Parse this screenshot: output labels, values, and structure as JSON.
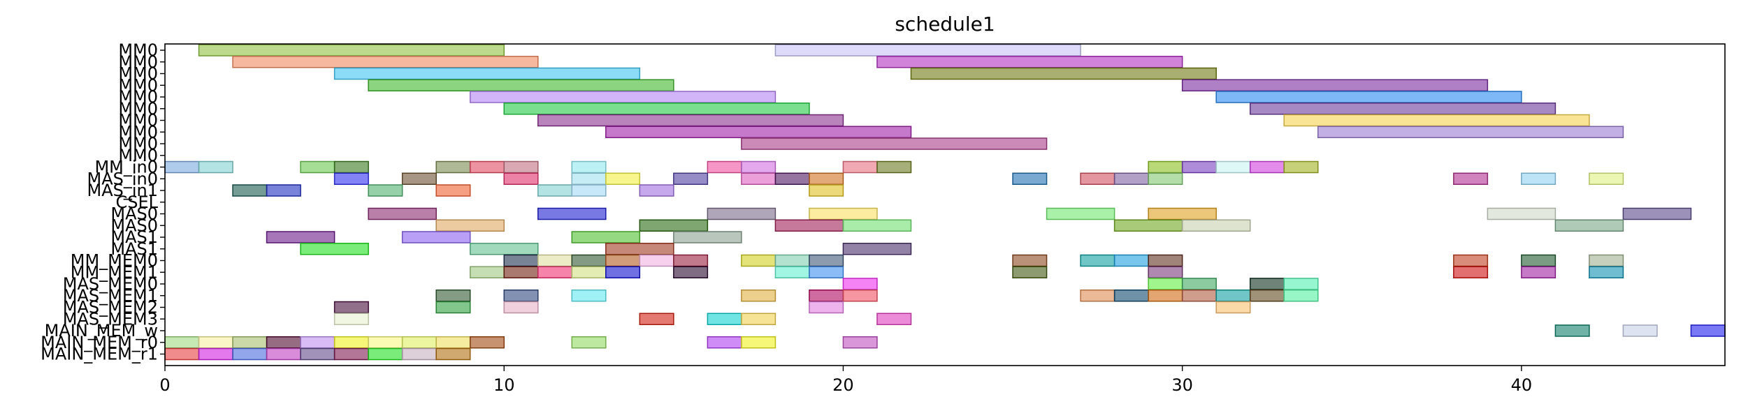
{
  "chart_data": {
    "type": "gantt",
    "title": "schedule1",
    "xlabel": "",
    "ylabel": "",
    "xlim": [
      0,
      46
    ],
    "x_ticks": [
      0,
      10,
      20,
      30,
      40
    ],
    "grid": false,
    "rows": [
      "MM0",
      "MM0",
      "MM0",
      "MM0",
      "MM0",
      "MM0",
      "MM0",
      "MM0",
      "MM0",
      "MM0",
      "MM_in0",
      "MAS_in0",
      "MAS_in1",
      "CSEL",
      "MAS0",
      "MAS0",
      "MAS1",
      "MAS1",
      "MM_MEM0",
      "MM_MEM1",
      "MAS_MEM0",
      "MAS_MEM1",
      "MAS_MEM2",
      "MAS_MEM3",
      "MAIN_MEM_w",
      "MAIN_MEM_r0",
      "MAIN_MEM_r1"
    ],
    "tasks": [
      {
        "row": 0,
        "start": 1,
        "end": 10,
        "color": "#8fbf3f"
      },
      {
        "row": 0,
        "start": 18,
        "end": 27,
        "color": "#c7c3f5"
      },
      {
        "row": 1,
        "start": 2,
        "end": 11,
        "color": "#f08a60"
      },
      {
        "row": 1,
        "start": 21,
        "end": 30,
        "color": "#b030c0"
      },
      {
        "row": 2,
        "start": 5,
        "end": 14,
        "color": "#40c4f4"
      },
      {
        "row": 2,
        "start": 22,
        "end": 31,
        "color": "#6f7a10"
      },
      {
        "row": 3,
        "start": 6,
        "end": 15,
        "color": "#3fb82a"
      },
      {
        "row": 3,
        "start": 30,
        "end": 39,
        "color": "#7a2ba0"
      },
      {
        "row": 4,
        "start": 9,
        "end": 18,
        "color": "#b482f5"
      },
      {
        "row": 4,
        "start": 31,
        "end": 40,
        "color": "#2a88f0"
      },
      {
        "row": 5,
        "start": 10,
        "end": 19,
        "color": "#22cc44"
      },
      {
        "row": 5,
        "start": 32,
        "end": 41,
        "color": "#6a3a9a"
      },
      {
        "row": 6,
        "start": 11,
        "end": 20,
        "color": "#8a3090"
      },
      {
        "row": 6,
        "start": 33,
        "end": 42,
        "color": "#f5d250"
      },
      {
        "row": 7,
        "start": 13,
        "end": 22,
        "color": "#a020a8"
      },
      {
        "row": 7,
        "start": 34,
        "end": 43,
        "color": "#9a7ad0"
      },
      {
        "row": 8,
        "start": 17,
        "end": 26,
        "color": "#a83c88"
      },
      {
        "row": 10,
        "start": 0,
        "end": 1,
        "color": "#7aa8e0"
      },
      {
        "row": 10,
        "start": 1,
        "end": 2,
        "color": "#80d0d0"
      },
      {
        "row": 10,
        "start": 4,
        "end": 5,
        "color": "#6ac850"
      },
      {
        "row": 10,
        "start": 5,
        "end": 6,
        "color": "#3a7a20"
      },
      {
        "row": 10,
        "start": 8,
        "end": 9,
        "color": "#7a8a50"
      },
      {
        "row": 10,
        "start": 9,
        "end": 10,
        "color": "#e04a60"
      },
      {
        "row": 10,
        "start": 10,
        "end": 11,
        "color": "#c07080"
      },
      {
        "row": 10,
        "start": 12,
        "end": 13,
        "color": "#90e8f0"
      },
      {
        "row": 10,
        "start": 16,
        "end": 17,
        "color": "#f050a0"
      },
      {
        "row": 10,
        "start": 17,
        "end": 18,
        "color": "#d070e0"
      },
      {
        "row": 10,
        "start": 20,
        "end": 21,
        "color": "#e87080"
      },
      {
        "row": 10,
        "start": 21,
        "end": 22,
        "color": "#6a7a20"
      },
      {
        "row": 10,
        "start": 29,
        "end": 30,
        "color": "#8ac020"
      },
      {
        "row": 10,
        "start": 30,
        "end": 31,
        "color": "#7a40c0"
      },
      {
        "row": 10,
        "start": 31,
        "end": 32,
        "color": "#c8f4f4"
      },
      {
        "row": 10,
        "start": 32,
        "end": 33,
        "color": "#d040e0"
      },
      {
        "row": 10,
        "start": 33,
        "end": 34,
        "color": "#a0b020"
      },
      {
        "row": 11,
        "start": 5,
        "end": 6,
        "color": "#3030f0"
      },
      {
        "row": 11,
        "start": 7,
        "end": 8,
        "color": "#6a5030"
      },
      {
        "row": 11,
        "start": 10,
        "end": 11,
        "color": "#e0306a"
      },
      {
        "row": 11,
        "start": 12,
        "end": 13,
        "color": "#a0e0f0"
      },
      {
        "row": 11,
        "start": 13,
        "end": 14,
        "color": "#f0f040"
      },
      {
        "row": 11,
        "start": 15,
        "end": 16,
        "color": "#5040a0"
      },
      {
        "row": 11,
        "start": 17,
        "end": 18,
        "color": "#e060c0"
      },
      {
        "row": 11,
        "start": 18,
        "end": 19,
        "color": "#501860"
      },
      {
        "row": 11,
        "start": 19,
        "end": 20,
        "color": "#d07020"
      },
      {
        "row": 11,
        "start": 25,
        "end": 26,
        "color": "#2070b0"
      },
      {
        "row": 11,
        "start": 27,
        "end": 28,
        "color": "#d05060"
      },
      {
        "row": 11,
        "start": 28,
        "end": 29,
        "color": "#8060a0"
      },
      {
        "row": 11,
        "start": 29,
        "end": 30,
        "color": "#80c870"
      },
      {
        "row": 11,
        "start": 38,
        "end": 39,
        "color": "#b03090"
      },
      {
        "row": 11,
        "start": 40,
        "end": 41,
        "color": "#90d0f0"
      },
      {
        "row": 11,
        "start": 42,
        "end": 43,
        "color": "#e0f080"
      },
      {
        "row": 12,
        "start": 2,
        "end": 3,
        "color": "#1a5a50"
      },
      {
        "row": 12,
        "start": 3,
        "end": 4,
        "color": "#2030c0"
      },
      {
        "row": 12,
        "start": 6,
        "end": 7,
        "color": "#50b070"
      },
      {
        "row": 12,
        "start": 8,
        "end": 9,
        "color": "#f06030"
      },
      {
        "row": 12,
        "start": 11,
        "end": 12,
        "color": "#80d0d0"
      },
      {
        "row": 12,
        "start": 12,
        "end": 13,
        "color": "#a0d8f4"
      },
      {
        "row": 12,
        "start": 14,
        "end": 15,
        "color": "#a070e0"
      },
      {
        "row": 12,
        "start": 19,
        "end": 20,
        "color": "#e0c020"
      },
      {
        "row": 14,
        "start": 6,
        "end": 8,
        "color": "#8a2a70"
      },
      {
        "row": 14,
        "start": 11,
        "end": 13,
        "color": "#2020d0"
      },
      {
        "row": 14,
        "start": 16,
        "end": 18,
        "color": "#7a6a8a"
      },
      {
        "row": 14,
        "start": 19,
        "end": 21,
        "color": "#f8e060"
      },
      {
        "row": 14,
        "start": 26,
        "end": 28,
        "color": "#70e870"
      },
      {
        "row": 14,
        "start": 29,
        "end": 31,
        "color": "#e0a020"
      },
      {
        "row": 14,
        "start": 39,
        "end": 41,
        "color": "#d0d8c8"
      },
      {
        "row": 14,
        "start": 43,
        "end": 45,
        "color": "#5a4a8a"
      },
      {
        "row": 15,
        "start": 8,
        "end": 10,
        "color": "#e0a860"
      },
      {
        "row": 15,
        "start": 14,
        "end": 16,
        "color": "#2a6a10"
      },
      {
        "row": 15,
        "start": 18,
        "end": 20,
        "color": "#a02058"
      },
      {
        "row": 15,
        "start": 20,
        "end": 22,
        "color": "#70e070"
      },
      {
        "row": 15,
        "start": 28,
        "end": 30,
        "color": "#70a820"
      },
      {
        "row": 15,
        "start": 30,
        "end": 32,
        "color": "#c8d0b0"
      },
      {
        "row": 15,
        "start": 41,
        "end": 43,
        "color": "#7aa888"
      },
      {
        "row": 16,
        "start": 3,
        "end": 5,
        "color": "#6a1a8a"
      },
      {
        "row": 16,
        "start": 7,
        "end": 9,
        "color": "#8a60f0"
      },
      {
        "row": 16,
        "start": 12,
        "end": 14,
        "color": "#50c030"
      },
      {
        "row": 16,
        "start": 15,
        "end": 17,
        "color": "#8aa090"
      },
      {
        "row": 17,
        "start": 4,
        "end": 6,
        "color": "#20e020"
      },
      {
        "row": 17,
        "start": 9,
        "end": 11,
        "color": "#60c090"
      },
      {
        "row": 17,
        "start": 13,
        "end": 15,
        "color": "#a03a20"
      },
      {
        "row": 17,
        "start": 20,
        "end": 22,
        "color": "#4a306a"
      },
      {
        "row": 18,
        "start": 10,
        "end": 11,
        "color": "#203050"
      },
      {
        "row": 18,
        "start": 11,
        "end": 12,
        "color": "#e0e0a0"
      },
      {
        "row": 18,
        "start": 12,
        "end": 13,
        "color": "#305830"
      },
      {
        "row": 18,
        "start": 13,
        "end": 14,
        "color": "#b05a20"
      },
      {
        "row": 18,
        "start": 14,
        "end": 15,
        "color": "#f0b0e0"
      },
      {
        "row": 18,
        "start": 15,
        "end": 16,
        "color": "#9a2040"
      },
      {
        "row": 18,
        "start": 17,
        "end": 18,
        "color": "#d0d020"
      },
      {
        "row": 18,
        "start": 18,
        "end": 19,
        "color": "#80d0b0"
      },
      {
        "row": 18,
        "start": 19,
        "end": 20,
        "color": "#405878"
      },
      {
        "row": 18,
        "start": 25,
        "end": 26,
        "color": "#8a4a20"
      },
      {
        "row": 18,
        "start": 27,
        "end": 28,
        "color": "#10a0a0"
      },
      {
        "row": 18,
        "start": 28,
        "end": 29,
        "color": "#20a0e0"
      },
      {
        "row": 18,
        "start": 29,
        "end": 30,
        "color": "#603020"
      },
      {
        "row": 18,
        "start": 38,
        "end": 39,
        "color": "#c04020"
      },
      {
        "row": 18,
        "start": 40,
        "end": 41,
        "color": "#205a30"
      },
      {
        "row": 18,
        "start": 42,
        "end": 43,
        "color": "#a0b090"
      },
      {
        "row": 19,
        "start": 9,
        "end": 10,
        "color": "#a0c880"
      },
      {
        "row": 19,
        "start": 10,
        "end": 11,
        "color": "#702010"
      },
      {
        "row": 19,
        "start": 11,
        "end": 12,
        "color": "#f03070"
      },
      {
        "row": 19,
        "start": 12,
        "end": 13,
        "color": "#d0e080"
      },
      {
        "row": 19,
        "start": 13,
        "end": 14,
        "color": "#1010d0"
      },
      {
        "row": 19,
        "start": 15,
        "end": 16,
        "color": "#2a0a30"
      },
      {
        "row": 19,
        "start": 18,
        "end": 19,
        "color": "#60f0d0"
      },
      {
        "row": 19,
        "start": 19,
        "end": 20,
        "color": "#4090f0"
      },
      {
        "row": 19,
        "start": 25,
        "end": 26,
        "color": "#405a10"
      },
      {
        "row": 19,
        "start": 29,
        "end": 30,
        "color": "#7a3a7a"
      },
      {
        "row": 19,
        "start": 38,
        "end": 39,
        "color": "#d01010"
      },
      {
        "row": 19,
        "start": 40,
        "end": 41,
        "color": "#a020a0"
      },
      {
        "row": 19,
        "start": 42,
        "end": 43,
        "color": "#1090b0"
      },
      {
        "row": 20,
        "start": 20,
        "end": 21,
        "color": "#f030f0"
      },
      {
        "row": 20,
        "start": 29,
        "end": 30,
        "color": "#60f040"
      },
      {
        "row": 20,
        "start": 30,
        "end": 31,
        "color": "#40a860"
      },
      {
        "row": 20,
        "start": 32,
        "end": 33,
        "color": "#103020"
      },
      {
        "row": 20,
        "start": 33,
        "end": 34,
        "color": "#50f0b0"
      },
      {
        "row": 21,
        "start": 8,
        "end": 9,
        "color": "#305a30"
      },
      {
        "row": 21,
        "start": 10,
        "end": 11,
        "color": "#304a80"
      },
      {
        "row": 21,
        "start": 12,
        "end": 13,
        "color": "#60e8f0"
      },
      {
        "row": 21,
        "start": 17,
        "end": 18,
        "color": "#e0b040"
      },
      {
        "row": 21,
        "start": 19,
        "end": 20,
        "color": "#b00860"
      },
      {
        "row": 21,
        "start": 20,
        "end": 21,
        "color": "#f05060"
      },
      {
        "row": 21,
        "start": 27,
        "end": 28,
        "color": "#e08a50"
      },
      {
        "row": 21,
        "start": 28,
        "end": 29,
        "color": "#104a70"
      },
      {
        "row": 21,
        "start": 29,
        "end": 30,
        "color": "#d06a10"
      },
      {
        "row": 21,
        "start": 30,
        "end": 31,
        "color": "#b05a40"
      },
      {
        "row": 21,
        "start": 31,
        "end": 32,
        "color": "#10a0a0"
      },
      {
        "row": 21,
        "start": 32,
        "end": 33,
        "color": "#604a20"
      },
      {
        "row": 21,
        "start": 33,
        "end": 34,
        "color": "#50f0a0"
      },
      {
        "row": 22,
        "start": 5,
        "end": 6,
        "color": "#4a1040"
      },
      {
        "row": 22,
        "start": 8,
        "end": 9,
        "color": "#30a040"
      },
      {
        "row": 22,
        "start": 10,
        "end": 11,
        "color": "#e8b0c8"
      },
      {
        "row": 22,
        "start": 19,
        "end": 20,
        "color": "#e080e0"
      },
      {
        "row": 22,
        "start": 31,
        "end": 32,
        "color": "#f8c070"
      },
      {
        "row": 23,
        "start": 5,
        "end": 6,
        "color": "#e8f0d0"
      },
      {
        "row": 23,
        "start": 14,
        "end": 15,
        "color": "#d02010"
      },
      {
        "row": 23,
        "start": 16,
        "end": 17,
        "color": "#10d0d0"
      },
      {
        "row": 23,
        "start": 17,
        "end": 18,
        "color": "#f0d050"
      },
      {
        "row": 23,
        "start": 21,
        "end": 22,
        "color": "#e040c0"
      },
      {
        "row": 24,
        "start": 41,
        "end": 42,
        "color": "#10806a"
      },
      {
        "row": 24,
        "start": 43,
        "end": 44,
        "color": "#c8d0e8"
      },
      {
        "row": 24,
        "start": 45,
        "end": 46,
        "color": "#2020f0"
      },
      {
        "row": 25,
        "start": 0,
        "end": 1,
        "color": "#a0d880"
      },
      {
        "row": 25,
        "start": 1,
        "end": 2,
        "color": "#f8f0a0"
      },
      {
        "row": 25,
        "start": 2,
        "end": 3,
        "color": "#a8c070"
      },
      {
        "row": 25,
        "start": 3,
        "end": 4,
        "color": "#500a30"
      },
      {
        "row": 25,
        "start": 4,
        "end": 5,
        "color": "#c090f0"
      },
      {
        "row": 25,
        "start": 5,
        "end": 6,
        "color": "#f0f020"
      },
      {
        "row": 25,
        "start": 6,
        "end": 7,
        "color": "#f8f880"
      },
      {
        "row": 25,
        "start": 7,
        "end": 8,
        "color": "#e0f060"
      },
      {
        "row": 25,
        "start": 8,
        "end": 9,
        "color": "#f0e060"
      },
      {
        "row": 25,
        "start": 9,
        "end": 10,
        "color": "#a04a10"
      },
      {
        "row": 25,
        "start": 12,
        "end": 13,
        "color": "#90d860"
      },
      {
        "row": 25,
        "start": 16,
        "end": 17,
        "color": "#b040f0"
      },
      {
        "row": 25,
        "start": 17,
        "end": 18,
        "color": "#f0f020"
      },
      {
        "row": 25,
        "start": 20,
        "end": 21,
        "color": "#c050c0"
      },
      {
        "row": 26,
        "start": 0,
        "end": 1,
        "color": "#e84040"
      },
      {
        "row": 26,
        "start": 1,
        "end": 2,
        "color": "#d020e0"
      },
      {
        "row": 26,
        "start": 2,
        "end": 3,
        "color": "#4a6ae0"
      },
      {
        "row": 26,
        "start": 3,
        "end": 4,
        "color": "#c040c0"
      },
      {
        "row": 26,
        "start": 4,
        "end": 5,
        "color": "#604a8a"
      },
      {
        "row": 26,
        "start": 5,
        "end": 6,
        "color": "#801a50"
      },
      {
        "row": 26,
        "start": 6,
        "end": 7,
        "color": "#20e020"
      },
      {
        "row": 26,
        "start": 7,
        "end": 8,
        "color": "#c8b0c0"
      },
      {
        "row": 26,
        "start": 8,
        "end": 9,
        "color": "#b07010"
      }
    ]
  }
}
